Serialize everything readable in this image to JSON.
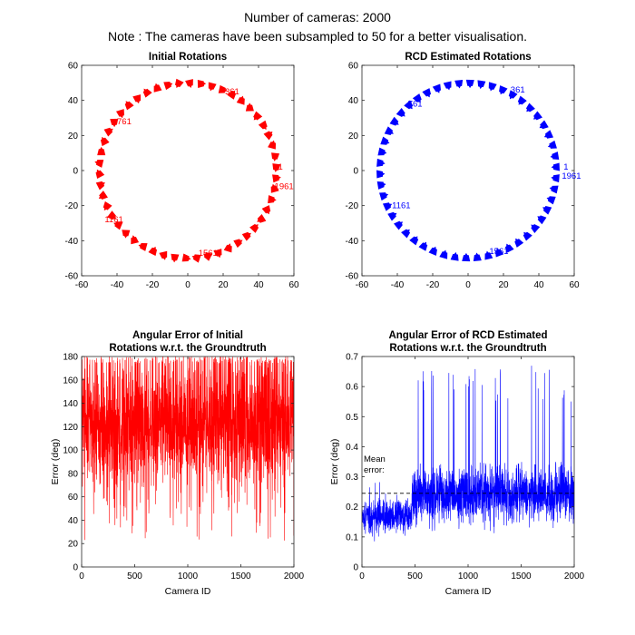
{
  "figure": {
    "title_line1": "Number of cameras: 2000",
    "title_line2": "Note : The cameras have been subsampled to 50 for a better visualisation."
  },
  "chart_data": [
    {
      "type": "scatter",
      "title": "Initial Rotations",
      "color": "#ff0000",
      "marker": "camera-frustum",
      "xlim": [
        -60,
        60
      ],
      "ylim": [
        -60,
        60
      ],
      "xticks": [
        -60,
        -40,
        -20,
        0,
        20,
        40,
        60
      ],
      "yticks": [
        -60,
        -40,
        -20,
        0,
        20,
        40,
        60
      ],
      "xlabel": "",
      "ylabel": "",
      "num_points": 50,
      "circle_radius": 50,
      "orientation": "random",
      "annotations": [
        {
          "text": "1",
          "x": 51,
          "y": 2
        },
        {
          "text": "361",
          "x": 21,
          "y": 45
        },
        {
          "text": "761",
          "x": -40,
          "y": 28
        },
        {
          "text": "1161",
          "x": -47,
          "y": -28
        },
        {
          "text": "1561",
          "x": 6,
          "y": -47
        },
        {
          "text": "1961",
          "x": 49,
          "y": -9
        }
      ]
    },
    {
      "type": "scatter",
      "title": "RCD Estimated Rotations",
      "color": "#0000ff",
      "marker": "camera-frustum",
      "xlim": [
        -60,
        60
      ],
      "ylim": [
        -60,
        60
      ],
      "xticks": [
        -60,
        -40,
        -20,
        0,
        20,
        40,
        60
      ],
      "yticks": [
        -60,
        -40,
        -20,
        0,
        20,
        40,
        60
      ],
      "xlabel": "",
      "ylabel": "",
      "num_points": 50,
      "circle_radius": 50,
      "orientation": "aligned",
      "annotations": [
        {
          "text": "1",
          "x": 54,
          "y": 2
        },
        {
          "text": "361",
          "x": 24,
          "y": 46
        },
        {
          "text": "761",
          "x": -34,
          "y": 38
        },
        {
          "text": "1161",
          "x": -43,
          "y": -20
        },
        {
          "text": "1561",
          "x": 12,
          "y": -46
        },
        {
          "text": "1961",
          "x": 53,
          "y": -3
        }
      ]
    },
    {
      "type": "line",
      "title_line1": "Angular Error of Initial",
      "title_line2": "Rotations w.r.t. the Groundtruth",
      "color": "#ff0000",
      "xlabel": "Camera ID",
      "ylabel": "Error (deg)",
      "xlim": [
        0,
        2000
      ],
      "ylim": [
        0,
        180
      ],
      "xticks": [
        0,
        500,
        1000,
        1500,
        2000
      ],
      "yticks": [
        0,
        20,
        40,
        60,
        80,
        100,
        120,
        140,
        160,
        180
      ],
      "n": 2000,
      "profile": "uniform-noise",
      "segments": [
        {
          "from": 0,
          "to": 2000,
          "low": 20,
          "high": 180,
          "center": 118
        }
      ]
    },
    {
      "type": "line",
      "title_line1": "Angular Error of RCD Estimated",
      "title_line2": "Rotations w.r.t. the Groundtruth",
      "color": "#0000ff",
      "xlabel": "Camera ID",
      "ylabel": "Error (deg)",
      "xlim": [
        0,
        2000
      ],
      "ylim": [
        0,
        0.7
      ],
      "xticks": [
        0,
        500,
        1000,
        1500,
        2000
      ],
      "yticks": [
        0,
        0.1,
        0.2,
        0.3,
        0.4,
        0.5,
        0.6,
        0.7
      ],
      "n": 2000,
      "profile": "noise",
      "segments": [
        {
          "from": 0,
          "to": 470,
          "center": 0.17,
          "spread": 0.1,
          "low": 0.05,
          "high": 0.3
        },
        {
          "from": 470,
          "to": 2000,
          "center": 0.24,
          "spread": 0.16,
          "low": 0.02,
          "high": 0.67
        }
      ],
      "mean_error": 0.245,
      "mean_label_line1": "Mean",
      "mean_label_line2": "error:"
    }
  ]
}
